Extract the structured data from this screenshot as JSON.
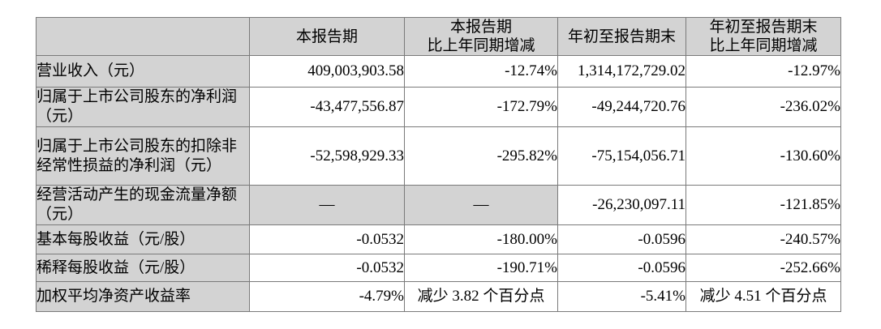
{
  "colors": {
    "shaded_bg": "#d3d3d3",
    "border": "#7a7a7a",
    "text": "#000000"
  },
  "table": {
    "columns": [
      {
        "line1": "",
        "line2": ""
      },
      {
        "line1": "本报告期",
        "line2": ""
      },
      {
        "line1": "本报告期",
        "line2": "比上年同期增减"
      },
      {
        "line1": "年初至报告期末",
        "line2": ""
      },
      {
        "line1": "年初至报告期末",
        "line2": "比上年同期增减"
      }
    ],
    "rows": [
      {
        "label": "营业收入（元）",
        "cells": [
          {
            "text": "409,003,903.58"
          },
          {
            "text": "-12.74%"
          },
          {
            "text": "1,314,172,729.02"
          },
          {
            "text": "-12.97%"
          }
        ]
      },
      {
        "label": "归属于上市公司股东的净利润（元）",
        "cells": [
          {
            "text": "-43,477,556.87"
          },
          {
            "text": "-172.79%"
          },
          {
            "text": "-49,244,720.76"
          },
          {
            "text": "-236.02%"
          }
        ]
      },
      {
        "label": "归属于上市公司股东的扣除非经常性损益的净利润（元）",
        "cells": [
          {
            "text": "-52,598,929.33"
          },
          {
            "text": "-295.82%"
          },
          {
            "text": "-75,154,056.71"
          },
          {
            "text": "-130.60%"
          }
        ]
      },
      {
        "label": "经营活动产生的现金流量净额（元）",
        "cells": [
          {
            "text": "—",
            "align": "center",
            "shaded": true
          },
          {
            "text": "—",
            "align": "center",
            "shaded": true
          },
          {
            "text": "-26,230,097.11"
          },
          {
            "text": "-121.85%"
          }
        ]
      },
      {
        "label": "基本每股收益（元/股）",
        "cells": [
          {
            "text": "-0.0532"
          },
          {
            "text": "-180.00%"
          },
          {
            "text": "-0.0596"
          },
          {
            "text": "-240.57%"
          }
        ]
      },
      {
        "label": "稀释每股收益（元/股）",
        "cells": [
          {
            "text": "-0.0532"
          },
          {
            "text": "-190.71%"
          },
          {
            "text": "-0.0596"
          },
          {
            "text": "-252.66%"
          }
        ]
      },
      {
        "label": "加权平均净资产收益率",
        "cells": [
          {
            "text": "-4.79%"
          },
          {
            "text": "减少 3.82 个百分点",
            "align": "center"
          },
          {
            "text": "-5.41%"
          },
          {
            "text": "减少 4.51 个百分点",
            "align": "center"
          }
        ]
      }
    ]
  }
}
